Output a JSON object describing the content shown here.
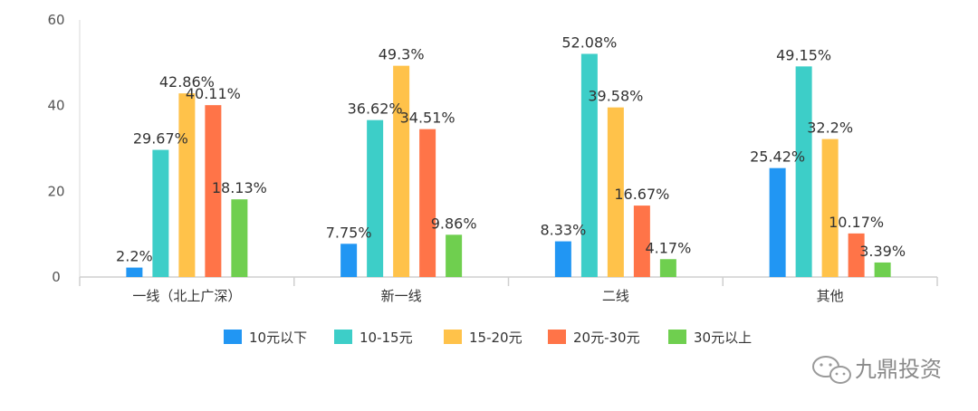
{
  "chart_data": {
    "type": "bar",
    "categories": [
      "一线（北上广深）",
      "新一线",
      "二线",
      "其他"
    ],
    "series": [
      {
        "name": "10元以下",
        "color": "#2196F3",
        "values": [
          2.2,
          7.75,
          8.33,
          25.42
        ],
        "labels": [
          "2.2%",
          "7.75%",
          "8.33%",
          "25.42%"
        ]
      },
      {
        "name": "10-15元",
        "color": "#3DCEC8",
        "values": [
          29.67,
          36.62,
          52.08,
          49.15
        ],
        "labels": [
          "29.67%",
          "36.62%",
          "52.08%",
          "49.15%"
        ]
      },
      {
        "name": "15-20元",
        "color": "#FFC24A",
        "values": [
          42.86,
          49.3,
          39.58,
          32.2
        ],
        "labels": [
          "42.86%",
          "49.3%",
          "39.58%",
          "32.2%"
        ]
      },
      {
        "name": "20元-30元",
        "color": "#FF7448",
        "values": [
          40.11,
          34.51,
          16.67,
          10.17
        ],
        "labels": [
          "40.11%",
          "34.51%",
          "16.67%",
          "10.17%"
        ]
      },
      {
        "name": "30元以上",
        "color": "#6FCF4F",
        "values": [
          18.13,
          9.86,
          4.17,
          3.39
        ],
        "labels": [
          "18.13%",
          "9.86%",
          "4.17%",
          "3.39%"
        ]
      }
    ],
    "ylim": [
      0,
      60
    ],
    "yticks": [
      0,
      20,
      40,
      60
    ],
    "legend_position": "bottom",
    "grid": false
  },
  "watermark": {
    "text": "九鼎投资",
    "icon": "wechat-icon"
  }
}
